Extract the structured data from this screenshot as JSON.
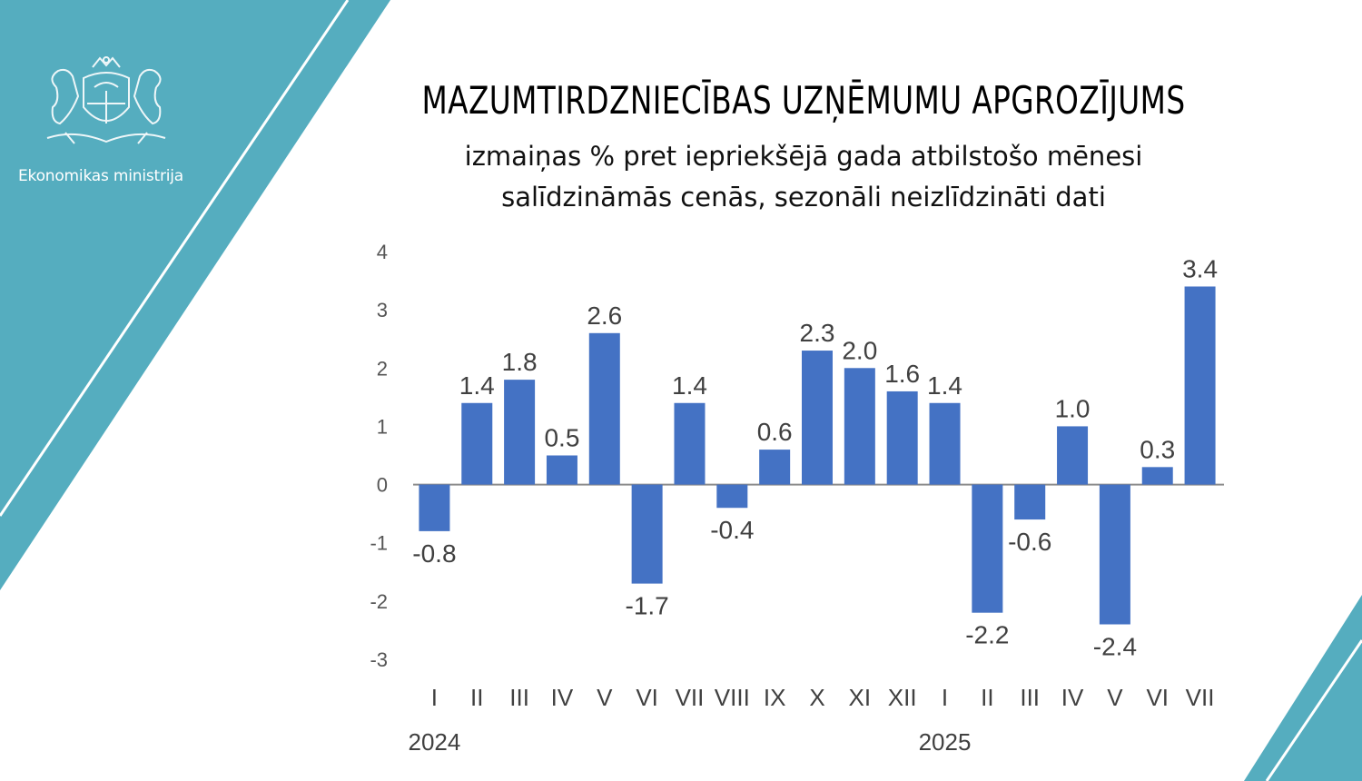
{
  "brand": {
    "ministry_name": "Ekonomikas ministrija",
    "logo_icon": "latvia-coat-of-arms-icon",
    "accent_color": "#55adbf"
  },
  "chart_data": {
    "type": "bar",
    "title": "MAZUMTIRDZNIECĪBAS UZŅĒMUMU APGROZĪJUMS",
    "subtitle": [
      "izmaiņas % pret iepriekšējā gada atbilstošo mēnesi",
      "salīdzināmās cenās, sezonāli neizlīdzināti dati"
    ],
    "categories": [
      "I",
      "II",
      "III",
      "IV",
      "V",
      "VI",
      "VII",
      "VIII",
      "IX",
      "X",
      "XI",
      "XII",
      "I",
      "II",
      "III",
      "IV",
      "V",
      "VI",
      "VII"
    ],
    "years": [
      {
        "label": "2024",
        "category_index": 0
      },
      {
        "label": "2025",
        "category_index": 12
      }
    ],
    "values": [
      -0.8,
      1.4,
      1.8,
      0.5,
      2.6,
      -1.7,
      1.4,
      -0.4,
      0.6,
      2.3,
      2.0,
      1.6,
      1.4,
      -2.2,
      -0.6,
      1.0,
      -2.4,
      0.3,
      3.4
    ],
    "data_labels": [
      "-0.8",
      "1.4",
      "1.8",
      "0.5",
      "2.6",
      "-1.7",
      "1.4",
      "-0.4",
      "0.6",
      "2.3",
      "2.0",
      "1.6",
      "1.4",
      "-2.2",
      "-0.6",
      "1.0",
      "-2.4",
      "0.3",
      "3.4"
    ],
    "yticks": [
      "4",
      "3",
      "2",
      "1",
      "0",
      "-1",
      "-2",
      "-3"
    ],
    "ylim": [
      -3,
      4
    ],
    "bar_color": "#4472c4",
    "grid": false,
    "legend": "none"
  }
}
